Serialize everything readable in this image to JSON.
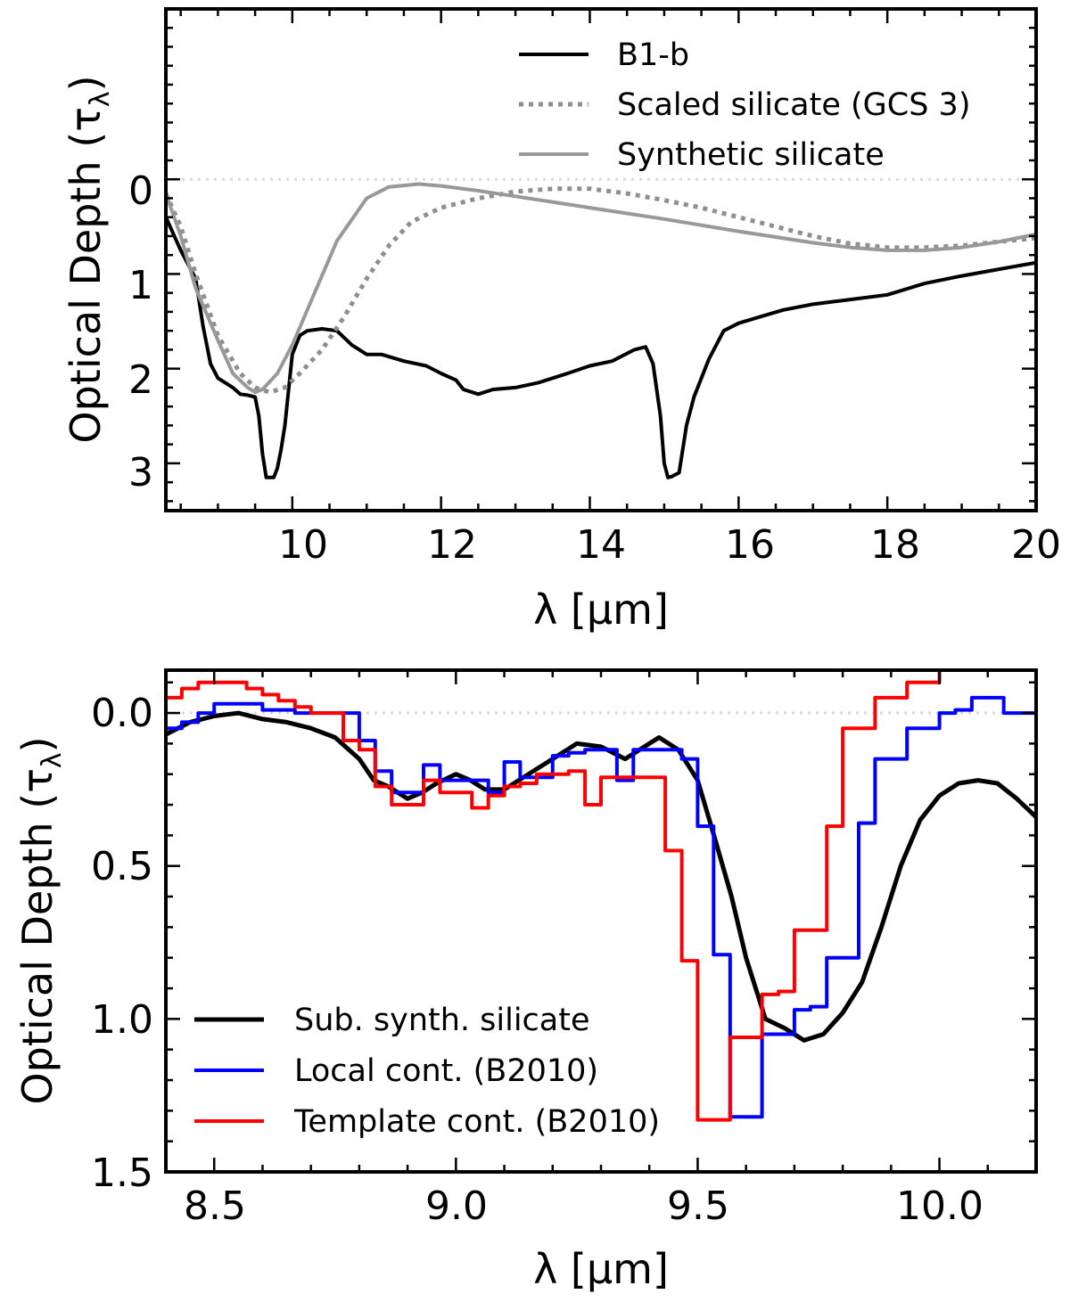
{
  "chart_data": [
    {
      "type": "line",
      "panel": "top",
      "title": "",
      "xlabel": "λ [μm]",
      "ylabel_main": "Optical Depth (τ",
      "ylabel_sub": "λ",
      "ylabel_close": ")",
      "xlim": [
        8.3,
        20.0
      ],
      "ylim": [
        3.5,
        -1.8
      ],
      "y_inverted": true,
      "xticks": [
        10,
        12,
        14,
        16,
        18,
        20
      ],
      "xtick_labels": [
        "10",
        "12",
        "14",
        "16",
        "18",
        "20"
      ],
      "xminor_step": 0.5,
      "yticks": [
        0,
        1,
        2,
        3
      ],
      "ytick_labels": [
        "0",
        "1",
        "2",
        "3"
      ],
      "yminor_step": 0.2,
      "legend_position": "top-right",
      "reference_line": {
        "y": 0,
        "color": "#d9d9d9",
        "style": "dotted"
      },
      "series": [
        {
          "name": "B1-b",
          "color": "#000000",
          "style": "solid",
          "width": 4,
          "x": [
            8.3,
            8.5,
            8.7,
            8.8,
            8.9,
            9.0,
            9.1,
            9.2,
            9.3,
            9.4,
            9.5,
            9.55,
            9.6,
            9.65,
            9.7,
            9.75,
            9.8,
            9.85,
            9.9,
            10.0,
            10.1,
            10.2,
            10.4,
            10.6,
            10.8,
            11.0,
            11.2,
            11.5,
            11.8,
            12.0,
            12.2,
            12.3,
            12.5,
            12.7,
            13.0,
            13.3,
            13.5,
            13.7,
            14.0,
            14.3,
            14.6,
            14.75,
            14.85,
            14.95,
            15.0,
            15.05,
            15.1,
            15.15,
            15.2,
            15.3,
            15.4,
            15.6,
            15.8,
            16.0,
            16.3,
            16.6,
            17.0,
            17.5,
            18.0,
            18.5,
            19.0,
            19.5,
            20.0
          ],
          "y": [
            0.4,
            0.75,
            1.05,
            1.55,
            1.95,
            2.1,
            2.15,
            2.2,
            2.27,
            2.28,
            2.3,
            2.5,
            2.9,
            3.15,
            3.15,
            3.15,
            3.05,
            2.85,
            2.6,
            1.85,
            1.65,
            1.6,
            1.58,
            1.6,
            1.75,
            1.85,
            1.85,
            1.92,
            1.97,
            2.05,
            2.12,
            2.22,
            2.27,
            2.22,
            2.2,
            2.15,
            2.1,
            2.05,
            1.97,
            1.92,
            1.8,
            1.77,
            1.95,
            2.5,
            3.0,
            3.15,
            3.14,
            3.12,
            3.1,
            2.6,
            2.3,
            1.9,
            1.6,
            1.52,
            1.45,
            1.38,
            1.32,
            1.27,
            1.22,
            1.1,
            1.02,
            0.95,
            0.88
          ]
        },
        {
          "name": "Scaled silicate (GCS 3)",
          "color": "#8f8f8f",
          "style": "dotted",
          "width": 5,
          "x": [
            8.3,
            8.5,
            8.7,
            9.0,
            9.3,
            9.5,
            9.7,
            9.9,
            10.1,
            10.4,
            10.7,
            11.0,
            11.3,
            11.6,
            12.0,
            12.5,
            13.0,
            13.5,
            14.0,
            14.5,
            15.0,
            15.5,
            16.0,
            16.5,
            17.0,
            17.5,
            18.0,
            18.5,
            19.0,
            19.5,
            20.0
          ],
          "y": [
            0.15,
            0.5,
            1.0,
            1.65,
            2.05,
            2.2,
            2.25,
            2.2,
            2.05,
            1.8,
            1.45,
            1.05,
            0.7,
            0.45,
            0.3,
            0.2,
            0.13,
            0.1,
            0.1,
            0.15,
            0.22,
            0.3,
            0.4,
            0.5,
            0.6,
            0.68,
            0.72,
            0.72,
            0.7,
            0.66,
            0.62
          ]
        },
        {
          "name": "Synthetic silicate",
          "color": "#999999",
          "style": "solid",
          "width": 4,
          "x": [
            8.3,
            8.5,
            8.7,
            9.0,
            9.2,
            9.4,
            9.5,
            9.6,
            9.8,
            10.0,
            10.3,
            10.6,
            11.0,
            11.3,
            11.7,
            12.0,
            12.5,
            13.0,
            14.0,
            15.0,
            16.0,
            17.0,
            17.5,
            18.0,
            18.5,
            19.0,
            19.5,
            20.0
          ],
          "y": [
            0.15,
            0.6,
            1.15,
            1.7,
            2.05,
            2.2,
            2.25,
            2.22,
            2.05,
            1.75,
            1.2,
            0.65,
            0.2,
            0.08,
            0.05,
            0.07,
            0.12,
            0.18,
            0.3,
            0.42,
            0.55,
            0.67,
            0.72,
            0.75,
            0.75,
            0.72,
            0.66,
            0.58
          ]
        }
      ]
    },
    {
      "type": "line",
      "panel": "bottom",
      "title": "",
      "xlabel": "λ [μm]",
      "ylabel_main": "Optical Depth (τ",
      "ylabel_sub": "λ",
      "ylabel_close": ")",
      "xlim": [
        8.4,
        10.2
      ],
      "ylim": [
        1.5,
        -0.14
      ],
      "y_inverted": true,
      "xticks": [
        8.5,
        9.0,
        9.5,
        10.0
      ],
      "xtick_labels": [
        "8.5",
        "9.0",
        "9.5",
        "10.0"
      ],
      "xminor_step": 0.1,
      "yticks": [
        0.0,
        0.5,
        1.0,
        1.5
      ],
      "ytick_labels": [
        "0.0",
        "0.5",
        "1.0",
        "1.5"
      ],
      "yminor_step": 0.1,
      "legend_position": "bottom-left",
      "reference_line": {
        "y": 0,
        "color": "#d9d9d9",
        "style": "dotted"
      },
      "series": [
        {
          "name": "Sub. synth. silicate",
          "color": "#000000",
          "style": "solid",
          "width": 5,
          "x": [
            8.4,
            8.45,
            8.5,
            8.55,
            8.6,
            8.65,
            8.7,
            8.75,
            8.8,
            8.83,
            8.86,
            8.9,
            8.93,
            8.96,
            9.0,
            9.03,
            9.06,
            9.1,
            9.15,
            9.2,
            9.25,
            9.3,
            9.35,
            9.38,
            9.42,
            9.46,
            9.5,
            9.53,
            9.57,
            9.6,
            9.64,
            9.68,
            9.72,
            9.76,
            9.8,
            9.84,
            9.88,
            9.92,
            9.96,
            10.0,
            10.04,
            10.08,
            10.12,
            10.16,
            10.2
          ],
          "y": [
            0.07,
            0.03,
            0.01,
            0.0,
            0.02,
            0.03,
            0.05,
            0.08,
            0.15,
            0.22,
            0.24,
            0.28,
            0.26,
            0.23,
            0.2,
            0.22,
            0.25,
            0.25,
            0.2,
            0.15,
            0.1,
            0.11,
            0.15,
            0.12,
            0.08,
            0.12,
            0.22,
            0.38,
            0.6,
            0.8,
            1.0,
            1.03,
            1.07,
            1.05,
            0.98,
            0.88,
            0.7,
            0.5,
            0.35,
            0.27,
            0.23,
            0.22,
            0.23,
            0.28,
            0.34
          ]
        },
        {
          "name": "Local cont. (B2010)",
          "color": "#0000ff",
          "style": "step",
          "width": 4,
          "x": [
            8.4,
            8.433,
            8.467,
            8.5,
            8.533,
            8.567,
            8.6,
            8.633,
            8.667,
            8.7,
            8.733,
            8.767,
            8.8,
            8.833,
            8.867,
            8.9,
            8.933,
            8.967,
            9.0,
            9.033,
            9.067,
            9.1,
            9.133,
            9.167,
            9.2,
            9.233,
            9.267,
            9.3,
            9.333,
            9.367,
            9.4,
            9.433,
            9.467,
            9.5,
            9.533,
            9.567,
            9.6,
            9.633,
            9.667,
            9.7,
            9.733,
            9.767,
            9.8,
            9.833,
            9.867,
            9.9,
            9.933,
            9.967,
            10.0,
            10.033,
            10.067,
            10.1,
            10.133,
            10.167,
            10.2
          ],
          "y": [
            0.05,
            0.03,
            0.0,
            -0.03,
            -0.03,
            -0.03,
            -0.01,
            -0.01,
            0.0,
            0.0,
            0.0,
            0.0,
            0.09,
            0.19,
            0.26,
            0.26,
            0.17,
            0.22,
            0.22,
            0.22,
            0.26,
            0.16,
            0.21,
            0.21,
            0.14,
            0.13,
            0.12,
            0.12,
            0.22,
            0.12,
            0.12,
            0.12,
            0.15,
            0.37,
            0.79,
            1.32,
            1.32,
            1.05,
            1.05,
            0.97,
            0.96,
            0.8,
            0.8,
            0.36,
            0.15,
            0.15,
            0.05,
            0.05,
            0.0,
            -0.01,
            -0.05,
            -0.05,
            0.0,
            0.0,
            0.0
          ]
        },
        {
          "name": "Template cont. (B2010)",
          "color": "#ff0000",
          "style": "step",
          "width": 4,
          "x": [
            8.4,
            8.433,
            8.467,
            8.5,
            8.533,
            8.567,
            8.6,
            8.633,
            8.667,
            8.7,
            8.733,
            8.767,
            8.8,
            8.833,
            8.867,
            8.9,
            8.933,
            8.967,
            9.0,
            9.033,
            9.067,
            9.1,
            9.133,
            9.167,
            9.2,
            9.233,
            9.267,
            9.3,
            9.333,
            9.367,
            9.4,
            9.433,
            9.467,
            9.5,
            9.533,
            9.567,
            9.6,
            9.633,
            9.667,
            9.7,
            9.733,
            9.767,
            9.8,
            9.833,
            9.867,
            9.9,
            9.933,
            9.967,
            10.0,
            10.033,
            10.067,
            10.1,
            10.133,
            10.167,
            10.2
          ],
          "y": [
            -0.05,
            -0.08,
            -0.1,
            -0.1,
            -0.1,
            -0.08,
            -0.06,
            -0.04,
            -0.02,
            0.0,
            0.0,
            0.09,
            0.12,
            0.24,
            0.3,
            0.3,
            0.22,
            0.26,
            0.26,
            0.31,
            0.27,
            0.24,
            0.23,
            0.2,
            0.2,
            0.19,
            0.3,
            0.21,
            0.21,
            0.21,
            0.21,
            0.45,
            0.81,
            1.33,
            1.33,
            1.06,
            1.06,
            0.92,
            0.91,
            0.71,
            0.71,
            0.37,
            0.05,
            0.05,
            -0.05,
            -0.05,
            -0.1,
            -0.1,
            -0.14,
            -0.14,
            -0.14,
            -0.14,
            -0.14,
            -0.14,
            -0.14
          ]
        }
      ]
    }
  ]
}
